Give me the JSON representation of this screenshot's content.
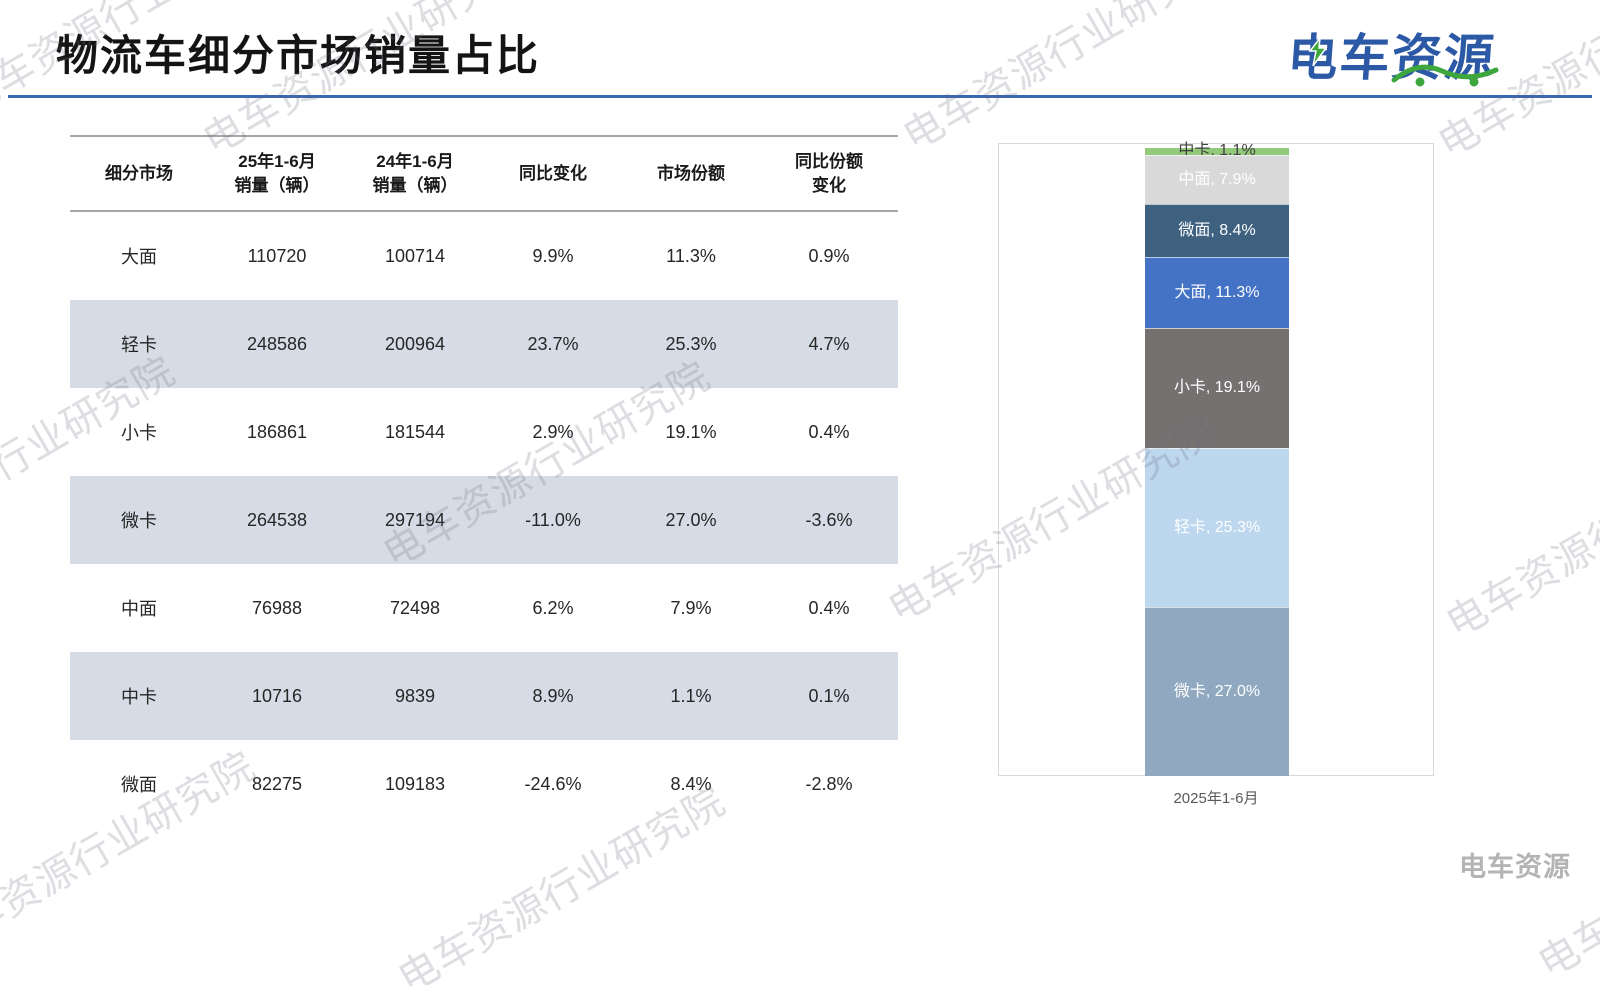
{
  "title": "物流车细分市场销量占比",
  "logo": {
    "text": "电车资源"
  },
  "watermark": {
    "text": "电车资源行业研究院",
    "corner_text": "电车资源"
  },
  "table": {
    "headers": [
      "细分市场",
      "25年1-6月\n销量（辆）",
      "24年1-6月\n销量（辆）",
      "同比变化",
      "市场份额",
      "同比份额\n变化"
    ],
    "rows": [
      [
        "大面",
        "110720",
        "100714",
        "9.9%",
        "11.3%",
        "0.9%"
      ],
      [
        "轻卡",
        "248586",
        "200964",
        "23.7%",
        "25.3%",
        "4.7%"
      ],
      [
        "小卡",
        "186861",
        "181544",
        "2.9%",
        "19.1%",
        "0.4%"
      ],
      [
        "微卡",
        "264538",
        "297194",
        "-11.0%",
        "27.0%",
        "-3.6%"
      ],
      [
        "中面",
        "76988",
        "72498",
        "6.2%",
        "7.9%",
        "0.4%"
      ],
      [
        "中卡",
        "10716",
        "9839",
        "8.9%",
        "1.1%",
        "0.1%"
      ],
      [
        "微面",
        "82275",
        "109183",
        "-24.6%",
        "8.4%",
        "-2.8%"
      ]
    ]
  },
  "chart_data": {
    "type": "bar",
    "subtype": "100%-stacked-column",
    "categories": [
      "2025年1-6月"
    ],
    "x_label": "2025年1-6月",
    "legend": "none",
    "axis": "hidden",
    "series_top_to_bottom": [
      {
        "name": "中卡",
        "share": 1.1,
        "label": "中卡, 1.1%",
        "color": "#93c97a",
        "label_color": "#404040"
      },
      {
        "name": "中面",
        "share": 7.9,
        "label": "中面, 7.9%",
        "color": "#d9d9d9",
        "label_color": "#ffffff"
      },
      {
        "name": "微面",
        "share": 8.4,
        "label": "微面, 8.4%",
        "color": "#3e617f",
        "label_color": "#ffffff"
      },
      {
        "name": "大面",
        "share": 11.3,
        "label": "大面, 11.3%",
        "color": "#4472c4",
        "label_color": "#ffffff"
      },
      {
        "name": "小卡",
        "share": 19.1,
        "label": "小卡, 19.1%",
        "color": "#757171",
        "label_color": "#ffffff"
      },
      {
        "name": "轻卡",
        "share": 25.3,
        "label": "轻卡, 25.3%",
        "color": "#bdd7ee",
        "label_color": "#ffffff"
      },
      {
        "name": "微卡",
        "share": 27.0,
        "label": "微卡, 27.0%",
        "color": "#91a9c0",
        "label_color": "#ffffff"
      }
    ]
  },
  "colors": {
    "title_rule": "#3a67b0",
    "table_band": "#d6dce5",
    "logo_blue": "#2b59a5",
    "logo_green": "#3da63d"
  }
}
